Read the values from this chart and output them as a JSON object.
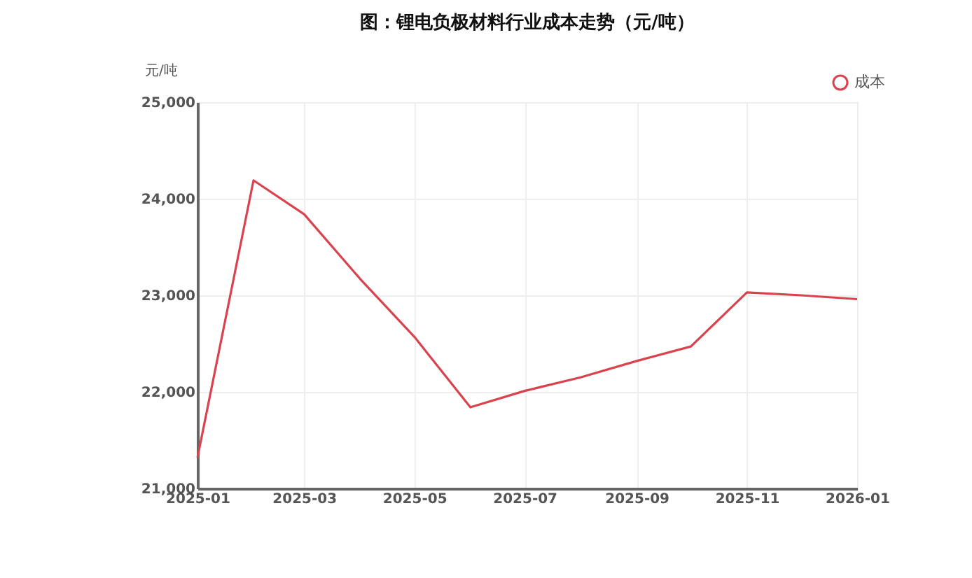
{
  "chart_data": {
    "type": "line",
    "title": "图：锂电负极材料行业成本走势（元/吨）",
    "ylabel": "元/吨",
    "x": [
      "2025-01",
      "2025-02",
      "2025-03",
      "2025-04",
      "2025-05",
      "2025-06",
      "2025-07",
      "2025-08",
      "2025-09",
      "2025-10",
      "2025-11",
      "2025-12",
      "2026-01"
    ],
    "series": [
      {
        "name": "成本",
        "color": "#d9434e",
        "values": [
          21320,
          24190,
          23840,
          23170,
          22570,
          21840,
          22010,
          22150,
          22320,
          22470,
          23030,
          23000,
          22960
        ]
      }
    ],
    "xlim": [
      "2025-01",
      "2026-01"
    ],
    "xticks": [
      "2025-01",
      "2025-03",
      "2025-05",
      "2025-07",
      "2025-09",
      "2025-11",
      "2026-01"
    ],
    "ylim": [
      21000,
      25000
    ],
    "yticks": [
      {
        "value": 21000,
        "label": "21,000"
      },
      {
        "value": 22000,
        "label": "22,000"
      },
      {
        "value": 23000,
        "label": "23,000"
      },
      {
        "value": 24000,
        "label": "24,000"
      },
      {
        "value": 25000,
        "label": "25,000"
      }
    ],
    "grid": true,
    "legend": "top right",
    "marker": "none",
    "line_style": "solid"
  }
}
